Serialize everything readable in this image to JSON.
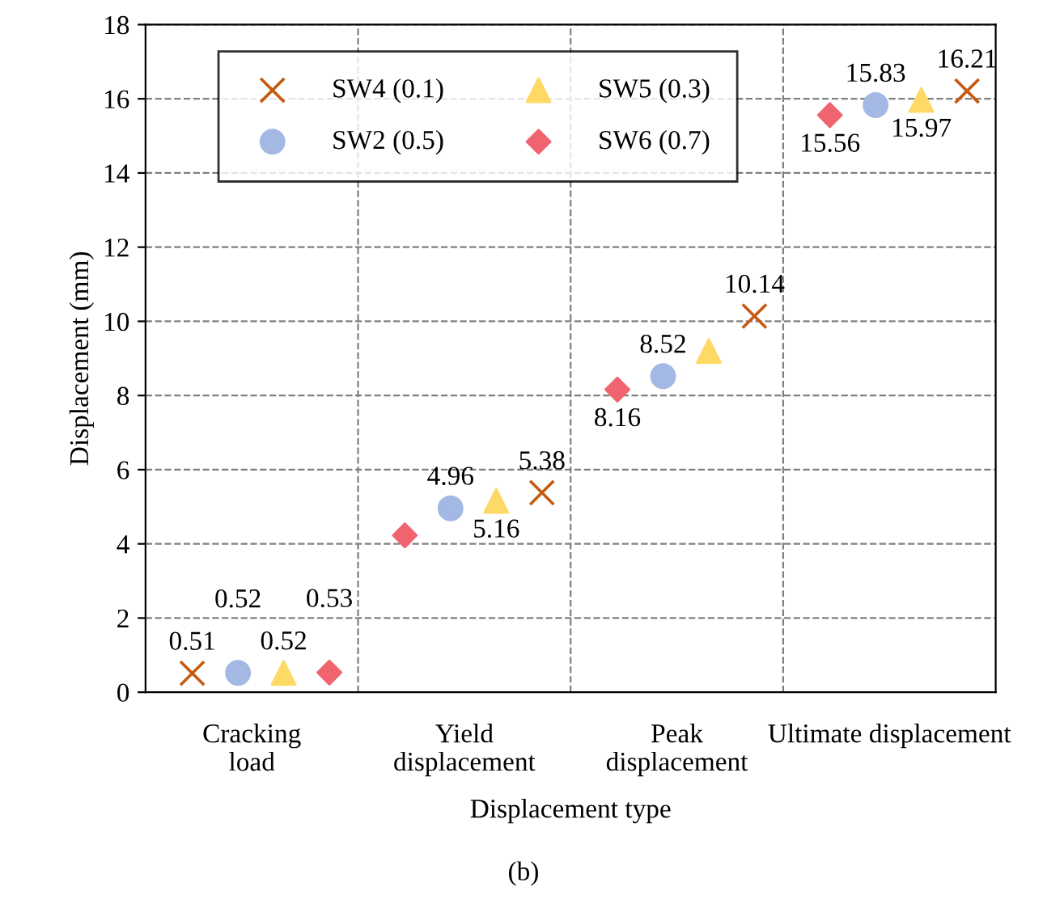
{
  "chart_data": {
    "type": "scatter",
    "xlabel": "Displacement type",
    "ylabel": "Displacement (mm)",
    "annotations": [
      "(b)"
    ],
    "categories": [
      "Cracking\nload",
      "Yield\ndisplacement",
      "Peak\ndisplacement",
      "Ultimate displacement"
    ],
    "series": [
      {
        "name": "SW4 (0.1)",
        "color": "#c55a11",
        "marker": "cross",
        "values": [
          0.51,
          5.38,
          10.14,
          16.21
        ],
        "value_labels": [
          "0.51",
          "5.38",
          "10.14",
          "16.21"
        ]
      },
      {
        "name": "SW2 (0.5)",
        "color": "#a4b8e4",
        "marker": "circle",
        "values": [
          0.52,
          4.96,
          8.52,
          15.83
        ],
        "value_labels": [
          "0.52",
          "4.96",
          "8.52",
          "15.83"
        ]
      },
      {
        "name": "SW5 (0.3)",
        "color": "#ffd966",
        "marker": "triangle",
        "values": [
          0.52,
          5.16,
          9.2,
          15.97
        ],
        "value_labels": [
          "0.52",
          "5.16",
          null,
          "15.97"
        ]
      },
      {
        "name": "SW6 (0.7)",
        "color": "#f06470",
        "marker": "diamond",
        "values": [
          0.53,
          4.23,
          8.16,
          15.56
        ],
        "value_labels": [
          "0.53",
          null,
          "8.16",
          "15.56"
        ]
      }
    ],
    "ylim": [
      0,
      18
    ],
    "yticks": [
      0,
      2,
      4,
      6,
      8,
      10,
      12,
      14,
      16,
      18
    ],
    "grid": true,
    "legend": "top left"
  }
}
